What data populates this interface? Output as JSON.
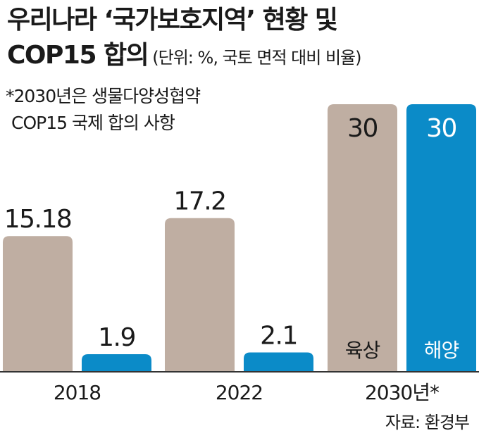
{
  "title": {
    "main_line1": "우리나라 ‘국가보호지역’ 현황 및",
    "main_line2": "COP15 합의",
    "unit": "(단위: %, 국토 면적 대비 비율)"
  },
  "footnote": {
    "line1": "*2030년은 생물다양성협약",
    "line2": "COP15 국제 합의 사항"
  },
  "source": "자료: 환경부",
  "colors": {
    "land": "#bfaea2",
    "marine": "#0b8bc8",
    "axis": "#333333"
  },
  "chart_data": {
    "type": "bar",
    "categories": [
      "2018",
      "2022",
      "2030년*"
    ],
    "series": [
      {
        "name": "육상",
        "values": [
          15.18,
          17.2,
          30
        ]
      },
      {
        "name": "해양",
        "values": [
          1.9,
          2.1,
          30
        ]
      }
    ],
    "value_labels": [
      [
        "15.18",
        "17.2",
        "30"
      ],
      [
        "1.9",
        "2.1",
        "30"
      ]
    ],
    "xlabel": "",
    "ylabel": "",
    "ylim": [
      0,
      30
    ],
    "legend": "in-bar labels on 2030 bars"
  }
}
